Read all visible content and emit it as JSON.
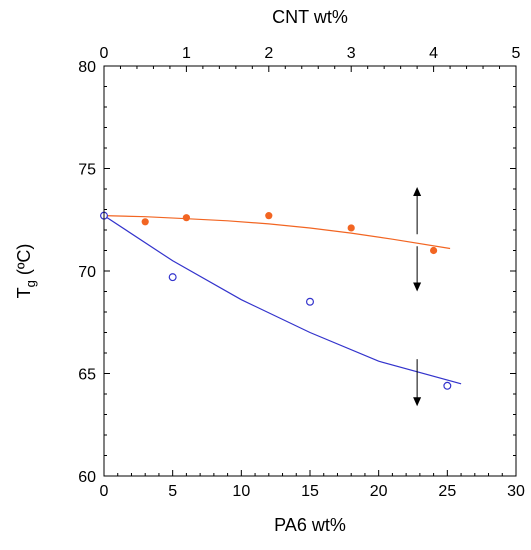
{
  "chart_data": {
    "type": "scatter",
    "title": "",
    "top_axis": {
      "label": "CNT wt%",
      "range": [
        0,
        5
      ],
      "ticks": [
        "0",
        "1",
        "2",
        "3",
        "4",
        "5"
      ]
    },
    "bottom_axis": {
      "label": "PA6 wt%",
      "range": [
        0,
        30
      ],
      "ticks": [
        "0",
        "5",
        "10",
        "15",
        "20",
        "25",
        "30"
      ]
    },
    "y_axis": {
      "label_main": "T",
      "label_sub": "g",
      "label_unit": " (ºC)",
      "range": [
        60,
        80
      ],
      "ticks": [
        "60",
        "65",
        "70",
        "75",
        "80"
      ]
    },
    "grid": false,
    "series": [
      {
        "axis": "top",
        "marker": "filled-circle",
        "color": "#f26522",
        "points": [
          [
            0,
            72.7
          ],
          [
            0.5,
            72.4
          ],
          [
            1,
            72.6
          ],
          [
            2,
            72.7
          ],
          [
            3,
            72.1
          ],
          [
            4,
            71.0
          ]
        ],
        "fit": [
          [
            0,
            72.7
          ],
          [
            0.5,
            72.65
          ],
          [
            1,
            72.55
          ],
          [
            1.5,
            72.45
          ],
          [
            2,
            72.3
          ],
          [
            2.5,
            72.1
          ],
          [
            3,
            71.85
          ],
          [
            3.5,
            71.55
          ],
          [
            4.2,
            71.1
          ]
        ]
      },
      {
        "axis": "bottom",
        "marker": "open-circle",
        "color": "#3333cc",
        "points": [
          [
            0,
            72.7
          ],
          [
            5,
            69.7
          ],
          [
            15,
            68.5
          ],
          [
            25,
            64.4
          ]
        ],
        "fit": [
          [
            0,
            72.7
          ],
          [
            5,
            70.5
          ],
          [
            10,
            68.6
          ],
          [
            15,
            67.0
          ],
          [
            20,
            65.6
          ],
          [
            26,
            64.5
          ]
        ]
      }
    ],
    "annotations": [
      {
        "type": "double-arrow",
        "x_cnt": 3.8,
        "y_from": 69.0,
        "y_to": 74.1,
        "midpoint_y": 71.5
      },
      {
        "type": "down-arrow",
        "x_cnt": 3.8,
        "y_from": 65.7,
        "y_to": 63.4
      }
    ],
    "colors": {
      "axis": "#000000",
      "arrow": "#000000"
    }
  }
}
